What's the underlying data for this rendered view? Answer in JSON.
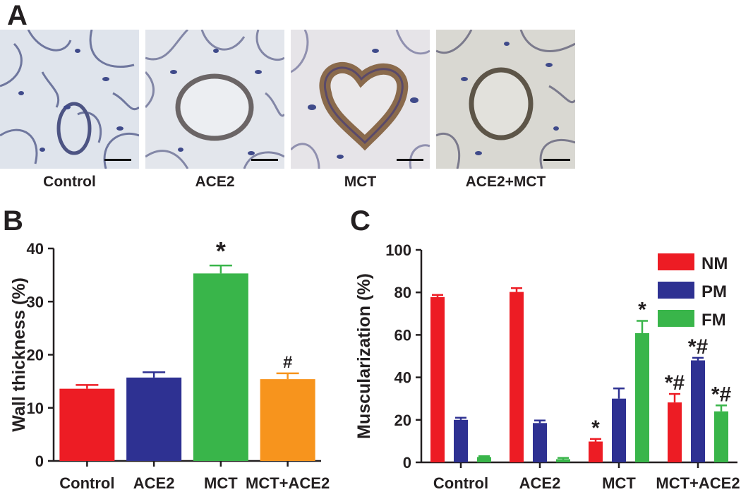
{
  "panels": {
    "a_label": "A",
    "b_label": "B",
    "c_label": "C"
  },
  "micrographs": [
    {
      "label": "Control",
      "style": "thin"
    },
    {
      "label": "ACE2",
      "style": "thin-round"
    },
    {
      "label": "MCT",
      "style": "thick"
    },
    {
      "label": "ACE2+MCT",
      "style": "medium"
    }
  ],
  "colors": {
    "red": "#ed1c24",
    "blue": "#2e3192",
    "green": "#39b54a",
    "orange": "#f7941d",
    "axis": "#231f20"
  },
  "chart_data": [
    {
      "type": "bar",
      "panel": "B",
      "categories": [
        "Control",
        "ACE2",
        "MCT",
        "MCT+ACE2"
      ],
      "values": [
        13.6,
        15.7,
        35.3,
        15.4
      ],
      "errors": [
        0.7,
        1.0,
        1.5,
        1.1
      ],
      "bar_colors": [
        "#ed1c24",
        "#2e3192",
        "#39b54a",
        "#f7941d"
      ],
      "annotations": [
        "",
        "",
        "*",
        "#"
      ],
      "ylabel": "Wall thickness (%)",
      "ylim": [
        0,
        40
      ],
      "yticks": [
        0,
        10,
        20,
        30,
        40
      ]
    },
    {
      "type": "bar",
      "panel": "C",
      "categories": [
        "Control",
        "ACE2",
        "MCT",
        "MCT+ACE2"
      ],
      "series": [
        {
          "name": "NM",
          "color": "#ed1c24",
          "values": [
            77.8,
            80.2,
            9.8,
            28.2
          ],
          "errors": [
            1.0,
            1.8,
            1.2,
            4.0
          ],
          "annotations": [
            "",
            "",
            "*",
            "*#"
          ]
        },
        {
          "name": "PM",
          "color": "#2e3192",
          "values": [
            20.0,
            18.5,
            30.0,
            48.0
          ],
          "errors": [
            1.0,
            1.2,
            4.8,
            1.2
          ],
          "annotations": [
            "",
            "",
            "",
            "*#"
          ]
        },
        {
          "name": "FM",
          "color": "#39b54a",
          "values": [
            2.5,
            1.5,
            60.8,
            24.0
          ],
          "errors": [
            0.4,
            0.6,
            5.8,
            2.8
          ],
          "annotations": [
            "",
            "",
            "*",
            "*#"
          ]
        }
      ],
      "ylabel": "Muscularization (%)",
      "ylim": [
        0,
        100
      ],
      "yticks": [
        0,
        20,
        40,
        60,
        80,
        100
      ],
      "legend": "top-right"
    }
  ]
}
